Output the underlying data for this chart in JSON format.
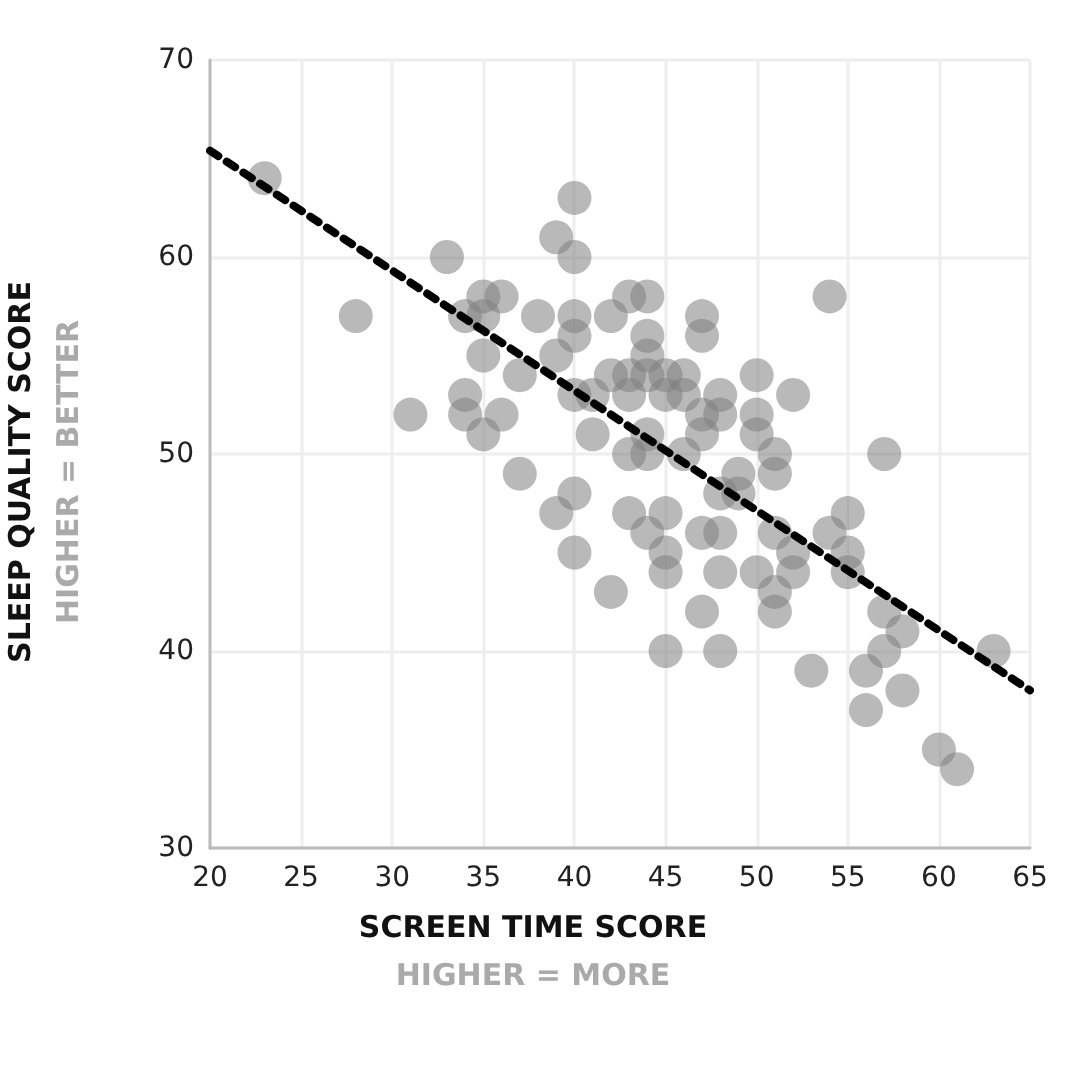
{
  "chart_data": {
    "type": "scatter",
    "xlabel": "SCREEN TIME SCORE",
    "ylabel": "SLEEP QUALITY SCORE",
    "annotations": [
      "HIGHER = MORE",
      "HIGHER = BETTER"
    ],
    "xlim": [
      20,
      65
    ],
    "xticks": [
      20,
      25,
      30,
      35,
      40,
      45,
      50,
      55,
      60,
      65
    ],
    "ylim": [
      30,
      70
    ],
    "yticks": [
      30,
      40,
      50,
      60,
      70
    ],
    "grid": true,
    "marker": "circle",
    "series": [
      {
        "color": "#808080",
        "x": [
          23,
          40,
          39,
          40,
          33,
          35,
          36,
          28,
          34,
          35,
          38,
          40,
          42,
          40,
          35,
          39,
          37,
          42,
          40,
          41,
          34,
          31,
          34,
          36,
          35,
          41,
          37,
          40,
          39,
          40,
          42,
          43,
          44,
          47,
          47,
          44,
          54,
          44,
          43,
          44,
          45,
          46,
          50,
          43,
          45,
          46,
          48,
          52,
          47,
          48,
          50,
          44,
          47,
          50,
          43,
          44,
          46,
          51,
          57,
          49,
          51,
          48,
          49,
          43,
          45,
          55,
          44,
          47,
          48,
          51,
          54,
          45,
          52,
          55,
          45,
          48,
          50,
          52,
          55,
          51,
          47,
          51,
          57,
          58,
          57,
          45,
          48,
          63,
          53,
          56,
          58,
          56,
          60,
          61
        ],
        "values": [
          64,
          63,
          61,
          60,
          60,
          58,
          58,
          57,
          57,
          57,
          57,
          57,
          57,
          56,
          55,
          55,
          54,
          54,
          53,
          53,
          53,
          52,
          52,
          52,
          51,
          51,
          49,
          48,
          47,
          45,
          43,
          58,
          58,
          57,
          56,
          56,
          58,
          55,
          54,
          54,
          54,
          54,
          54,
          53,
          53,
          53,
          53,
          53,
          52,
          52,
          52,
          51,
          51,
          51,
          50,
          50,
          50,
          50,
          50,
          49,
          49,
          48,
          48,
          47,
          47,
          47,
          46,
          46,
          46,
          46,
          46,
          45,
          45,
          45,
          44,
          44,
          44,
          44,
          44,
          43,
          42,
          42,
          42,
          41,
          40,
          40,
          40,
          40,
          39,
          39,
          38,
          37,
          35,
          34
        ]
      },
      {
        "type": "line",
        "color": "#000000",
        "line_style": "dashed",
        "marker": "none",
        "x": [
          20,
          65
        ],
        "values": [
          65.4,
          38
        ]
      }
    ]
  }
}
